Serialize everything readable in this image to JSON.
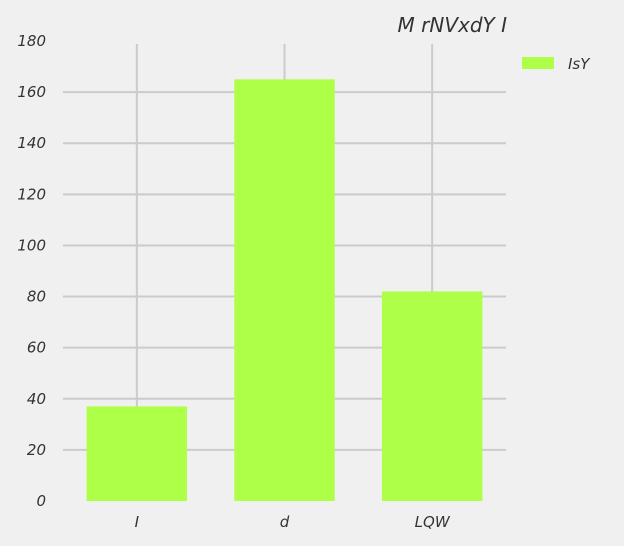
{
  "chart_data": {
    "type": "bar",
    "title": "M rNVxdY I",
    "categories": [
      "I",
      "d",
      "LQW"
    ],
    "series": [
      {
        "name": "IsY",
        "values": [
          37,
          165,
          82
        ],
        "color": "#adff47"
      }
    ],
    "xlabel": "",
    "ylabel": "",
    "ylim": [
      0,
      180
    ],
    "yticks": [
      0,
      20,
      40,
      60,
      80,
      100,
      120,
      140,
      160,
      180
    ],
    "grid": true,
    "legend": "top-right",
    "background": "#f0f0f0",
    "grid_color": "#cbcbcb"
  }
}
